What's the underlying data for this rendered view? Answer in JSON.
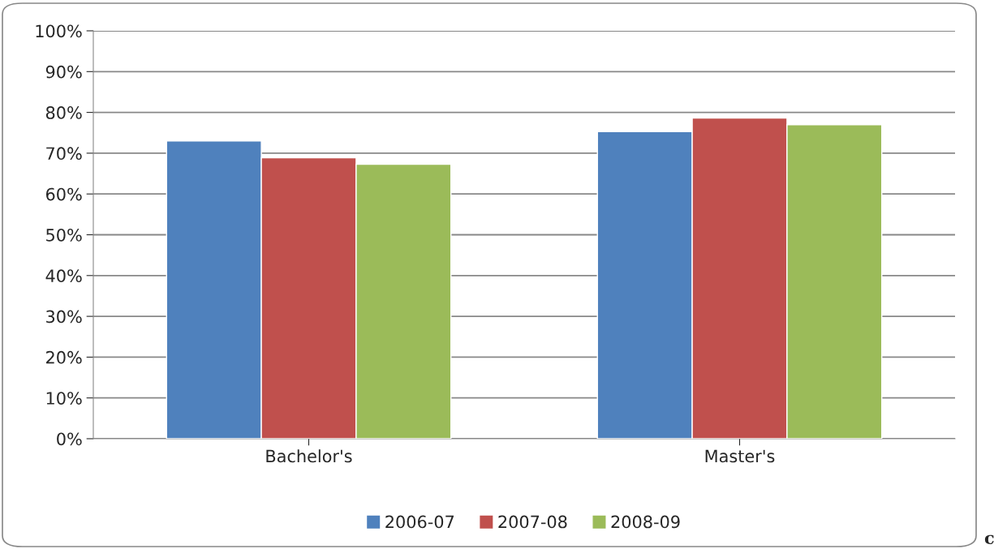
{
  "chart_data": {
    "type": "bar",
    "categories": [
      "Bachelor's",
      "Master's"
    ],
    "series": [
      {
        "name": "2006-07",
        "color": "#4f81bd",
        "values": [
          73,
          75.3
        ]
      },
      {
        "name": "2007-08",
        "color": "#c0504d",
        "values": [
          68.9,
          78.6
        ]
      },
      {
        "name": "2008-09",
        "color": "#9bbb59",
        "values": [
          67.3,
          77
        ]
      }
    ],
    "ylim": [
      0,
      100
    ],
    "yticks": [
      {
        "value": 0,
        "label": "0%"
      },
      {
        "value": 10,
        "label": "10%"
      },
      {
        "value": 20,
        "label": "20%"
      },
      {
        "value": 30,
        "label": "30%"
      },
      {
        "value": 40,
        "label": "40%"
      },
      {
        "value": 50,
        "label": "50%"
      },
      {
        "value": 60,
        "label": "60%"
      },
      {
        "value": 70,
        "label": "70%"
      },
      {
        "value": 80,
        "label": "80%"
      },
      {
        "value": 90,
        "label": "90%"
      },
      {
        "value": 100,
        "label": "100%"
      }
    ],
    "grid": "y",
    "legend": "bottom",
    "annotations": [
      "c"
    ]
  }
}
